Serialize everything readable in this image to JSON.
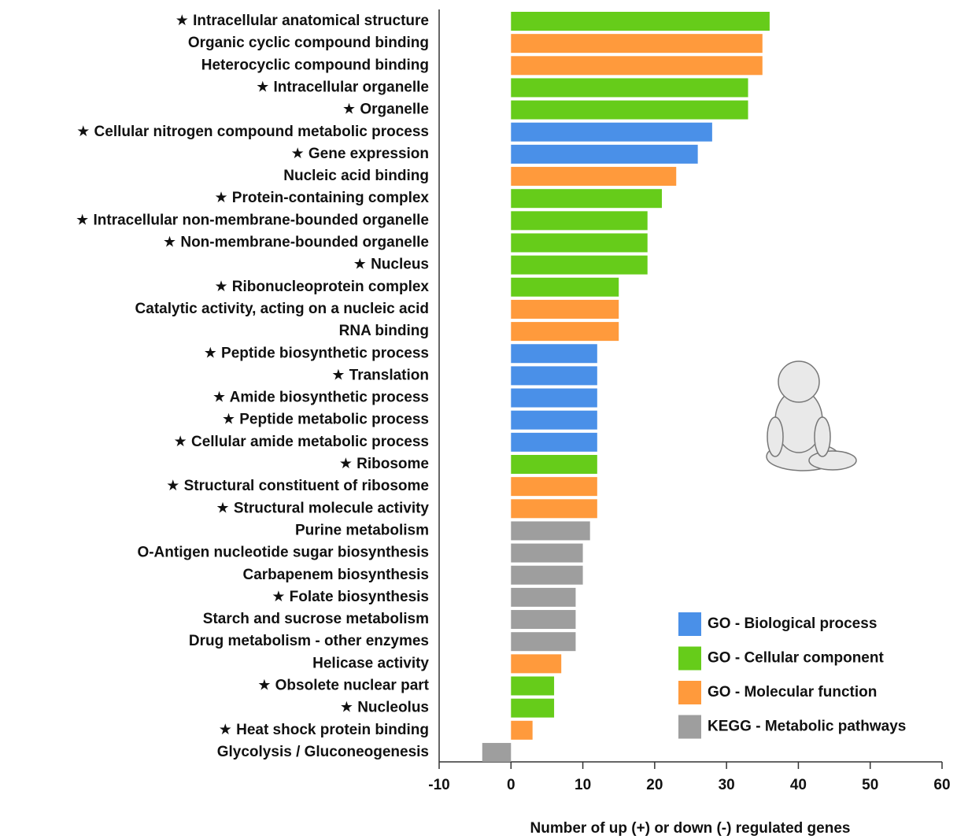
{
  "chart_data": {
    "type": "bar",
    "orientation": "horizontal",
    "x_label": "Number of up (+) or down (-) regulated genes",
    "categories": [
      "★ Intracellular anatomical structure",
      "Organic cyclic compound binding",
      "Heterocyclic compound binding",
      "★ Intracellular organelle",
      "★ Organelle",
      "★ Cellular nitrogen compound metabolic process",
      "★ Gene expression",
      "Nucleic acid binding",
      "★ Protein-containing complex",
      "★ Intracellular non-membrane-bounded organelle",
      "★ Non-membrane-bounded organelle",
      "★ Nucleus",
      "★ Ribonucleoprotein complex",
      "Catalytic activity, acting on a nucleic acid",
      "RNA binding",
      "★ Peptide biosynthetic process",
      "★ Translation",
      "★ Amide biosynthetic process",
      "★ Peptide metabolic process",
      "★ Cellular amide metabolic process",
      "★ Ribosome",
      "★ Structural constituent of ribosome",
      "★ Structural molecule activity",
      "Purine metabolism",
      "O-Antigen nucleotide sugar biosynthesis",
      "Carbapenem biosynthesis",
      "★ Folate biosynthesis",
      "Starch and sucrose metabolism",
      "Drug metabolism - other enzymes",
      "Helicase activity",
      "★ Obsolete nuclear part",
      "★ Nucleolus",
      "★ Heat shock protein binding",
      "Glycolysis / Gluconeogenesis"
    ],
    "series": [
      {
        "name": "GO - Biological process",
        "color": "#4a90e8",
        "values": [
          null,
          null,
          null,
          null,
          null,
          28,
          26,
          null,
          null,
          null,
          null,
          null,
          null,
          null,
          null,
          12,
          12,
          12,
          12,
          12,
          null,
          null,
          null,
          null,
          null,
          null,
          null,
          null,
          null,
          null,
          null,
          null,
          null,
          null
        ]
      },
      {
        "name": "GO - Cellular component",
        "color": "#66cc1a",
        "values": [
          36,
          null,
          null,
          33,
          33,
          null,
          null,
          null,
          21,
          19,
          19,
          19,
          15,
          null,
          null,
          null,
          null,
          null,
          null,
          null,
          12,
          null,
          null,
          null,
          null,
          null,
          null,
          null,
          null,
          null,
          6,
          6,
          null,
          null
        ]
      },
      {
        "name": "GO - Molecular function",
        "color": "#ff9a3c",
        "values": [
          null,
          35,
          35,
          null,
          null,
          null,
          null,
          23,
          null,
          null,
          null,
          null,
          null,
          15,
          15,
          null,
          null,
          null,
          null,
          null,
          null,
          12,
          12,
          null,
          null,
          null,
          null,
          null,
          null,
          7,
          null,
          null,
          3,
          null
        ]
      },
      {
        "name": "KEGG - Metabolic pathways",
        "color": "#9e9e9e",
        "values": [
          null,
          null,
          null,
          null,
          null,
          null,
          null,
          null,
          null,
          null,
          null,
          null,
          null,
          null,
          null,
          null,
          null,
          null,
          null,
          null,
          null,
          null,
          null,
          11,
          10,
          10,
          9,
          9,
          9,
          null,
          null,
          null,
          null,
          -4
        ]
      }
    ],
    "xlim": [
      -10,
      60
    ],
    "xticks": [
      -10,
      0,
      10,
      20,
      30,
      40,
      50,
      60
    ],
    "legend_position": "lower right"
  }
}
